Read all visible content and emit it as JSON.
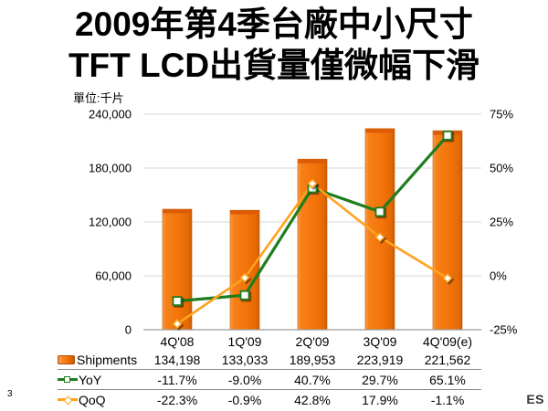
{
  "title": {
    "line1": "2009年第4季台廠中小尺寸",
    "line2": "TFT LCD出貨量僅微幅下滑"
  },
  "unit_label": "單位:千片",
  "chart_data": {
    "type": "bar",
    "secondary_type": "line",
    "title": "2009年第4季台廠中小尺寸 TFT LCD出貨量僅微幅下滑",
    "unit_label": "單位:千片",
    "categories": [
      "4Q'08",
      "1Q'09",
      "2Q'09",
      "3Q'09",
      "4Q'09(e)"
    ],
    "series": [
      {
        "name": "Shipments",
        "type": "bar",
        "axis": "left",
        "values": [
          134198,
          133033,
          189953,
          223919,
          221562
        ],
        "color": "#F3740A",
        "color_light": "#FA9D4A",
        "color_dark": "#C85A03",
        "cap_color": "#DC5B04"
      },
      {
        "name": "YoY",
        "type": "line",
        "axis": "right",
        "marker": "square",
        "values": [
          -11.7,
          -9.0,
          40.7,
          29.7,
          65.1
        ],
        "color": "#1E7E1E"
      },
      {
        "name": "QoQ",
        "type": "line",
        "axis": "right",
        "marker": "diamond",
        "values": [
          -22.3,
          -0.9,
          42.8,
          17.9,
          -1.1
        ],
        "color": "#FFA21E"
      }
    ],
    "left_axis": {
      "min": 0,
      "max": 240000,
      "ticks": [
        0,
        60000,
        120000,
        180000,
        240000
      ],
      "tick_labels": [
        "0",
        "60,000",
        "120,000",
        "180,000",
        "240,000"
      ]
    },
    "right_axis": {
      "min": -25,
      "max": 75,
      "ticks": [
        -25,
        0,
        25,
        50,
        75
      ],
      "tick_labels": [
        "-25%",
        "0%",
        "25%",
        "50%",
        "75%"
      ]
    },
    "grid": true,
    "grid_color": "#D9D9D9",
    "axis_color": "#9B9B9B",
    "legend_position": "table-left"
  },
  "table": {
    "rows": [
      {
        "label": "Shipments",
        "swatch": "bar",
        "values": [
          "134,198",
          "133,033",
          "189,953",
          "223,919",
          "221,562"
        ]
      },
      {
        "label": "YoY",
        "swatch": "line-square",
        "values": [
          "-11.7%",
          "-9.0%",
          "40.7%",
          "29.7%",
          "65.1%"
        ]
      },
      {
        "label": "QoQ",
        "swatch": "line-diamond",
        "values": [
          "-22.3%",
          "-0.9%",
          "42.8%",
          "17.9%",
          "-1.1%"
        ]
      }
    ]
  },
  "footer": {
    "page_number": "3",
    "logo_text": "ES"
  }
}
